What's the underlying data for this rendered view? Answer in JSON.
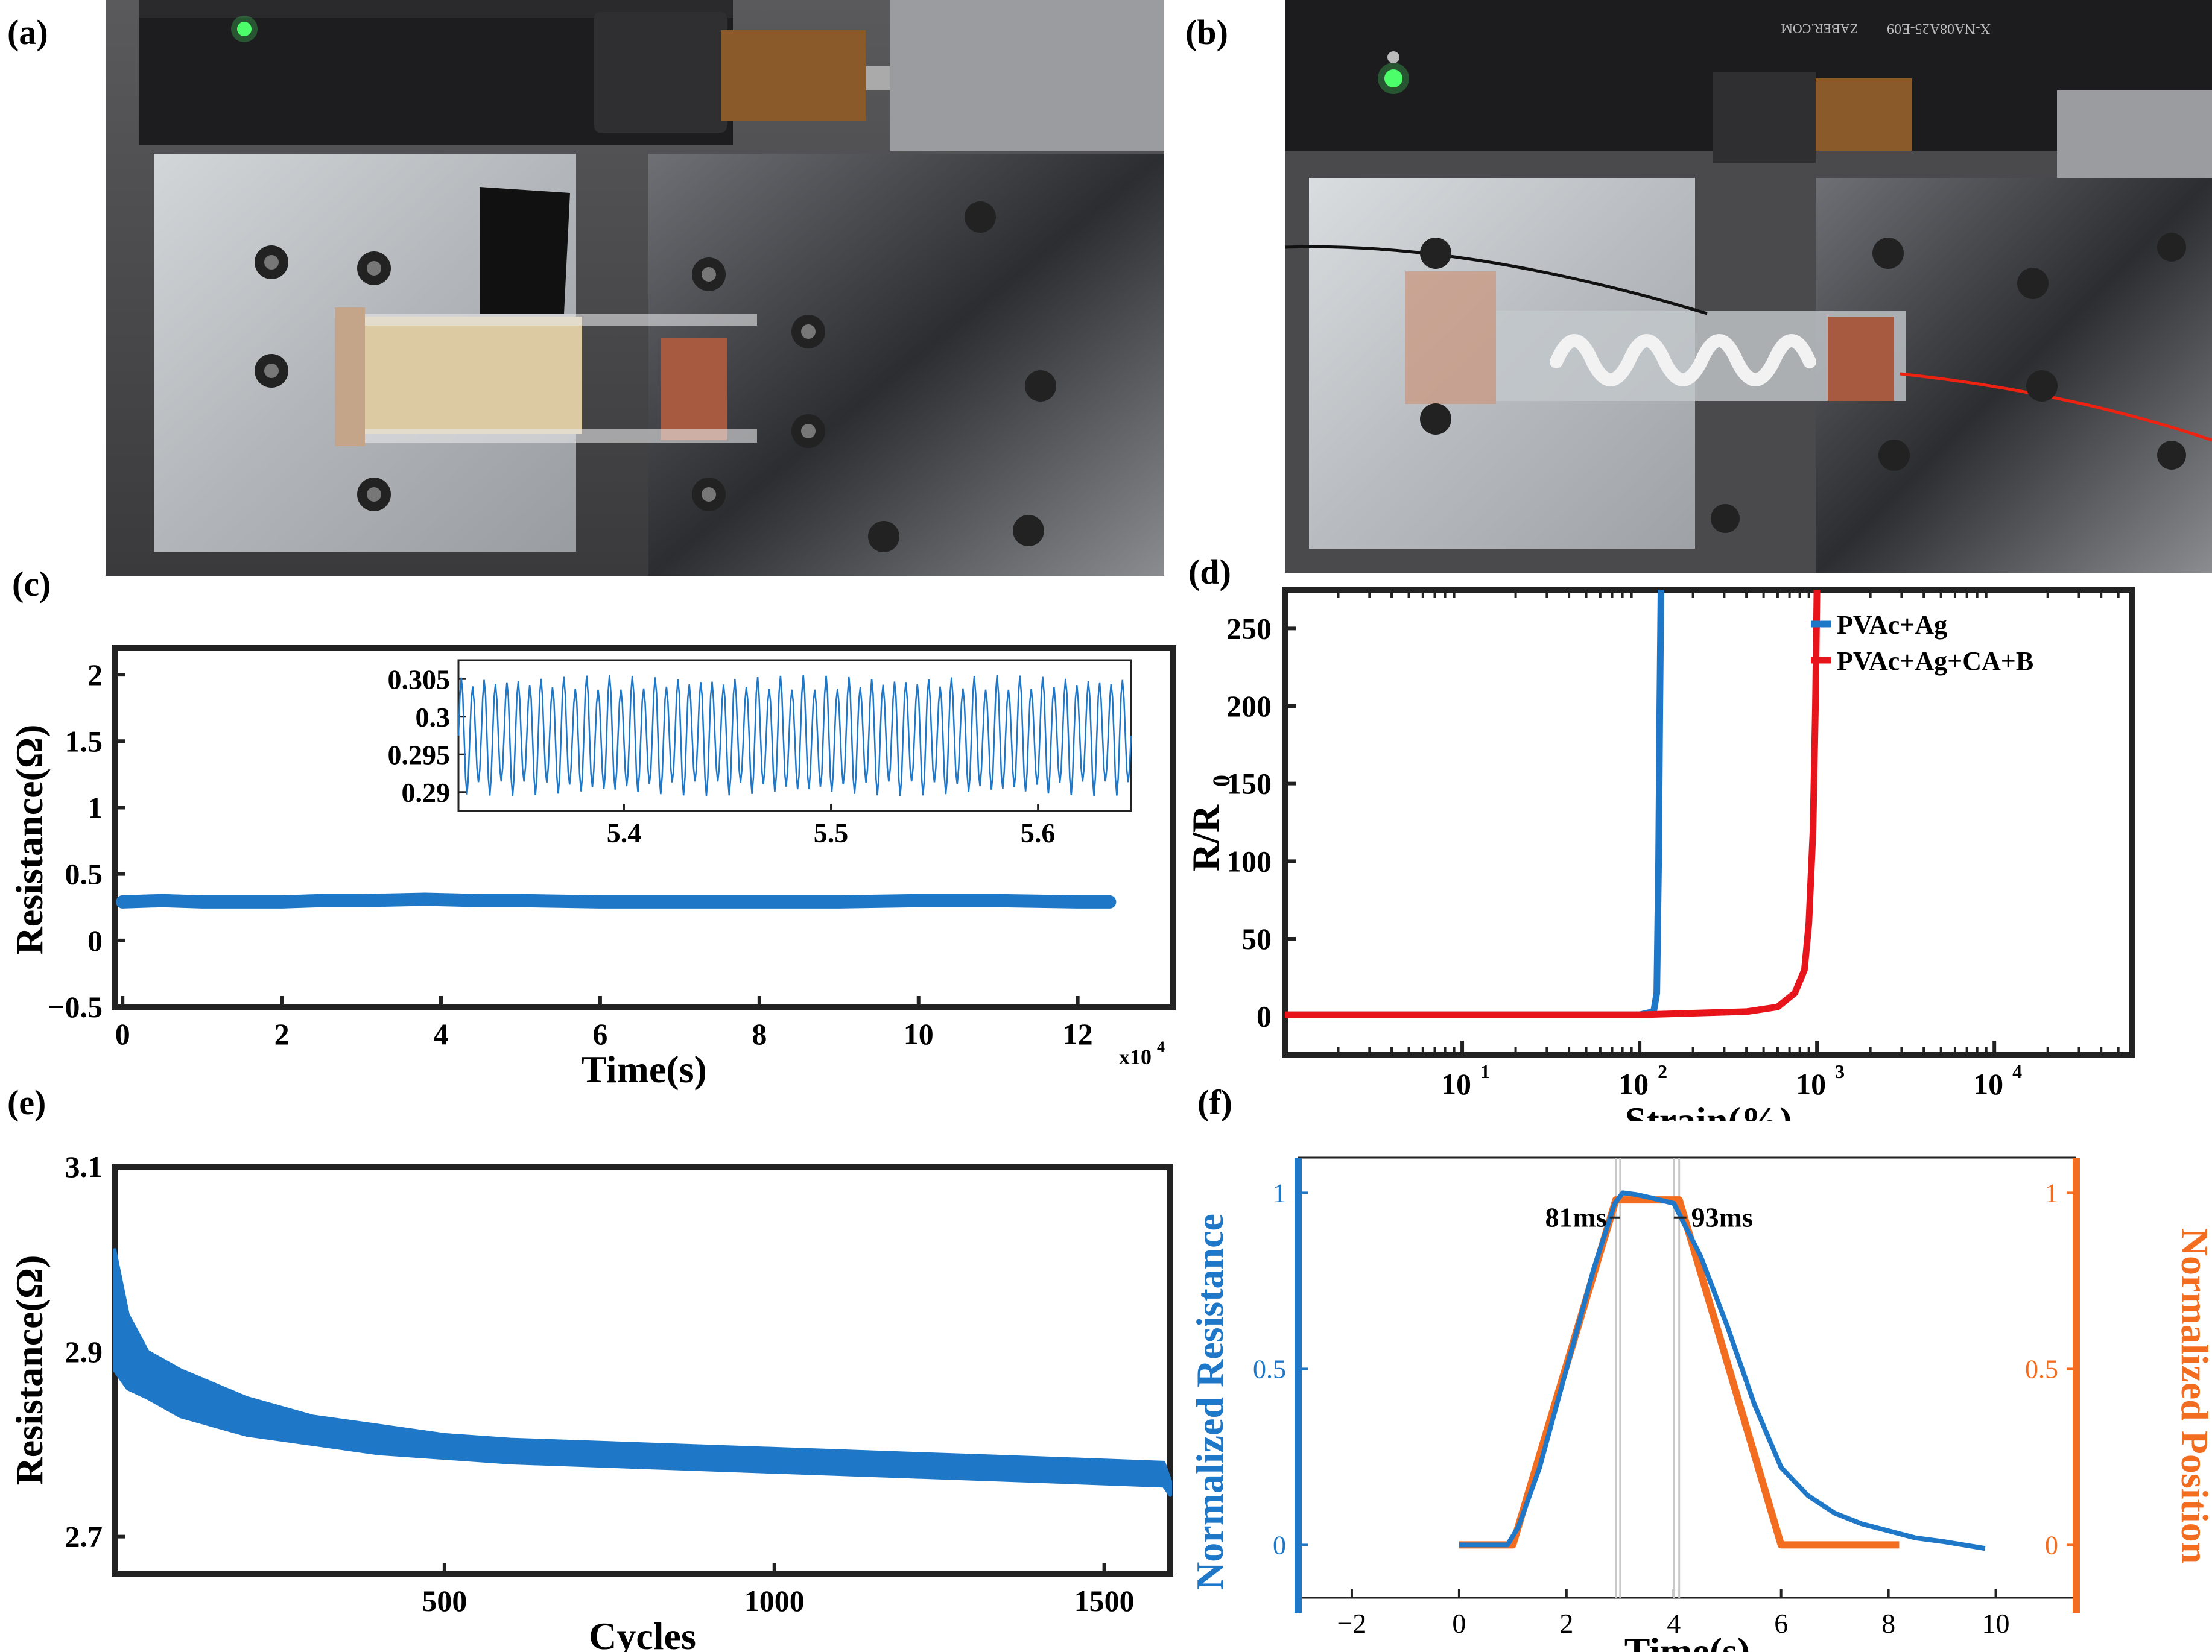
{
  "panels": {
    "a": "(a)",
    "b": "(b)",
    "c": "(c)",
    "d": "(d)",
    "e": "(e)",
    "f": "(f)"
  },
  "colors": {
    "blue": "#1f77c8",
    "red": "#e8141b",
    "orange": "#f36d21",
    "axis_blue": "#1f77c8"
  },
  "photos": {
    "b_label": "X-NA08A25-E09",
    "b_brand": "ZABER.COM"
  },
  "chart_data": [
    {
      "id": "c",
      "type": "line",
      "xlabel": "Time(s)",
      "ylabel": "Resistance(Ω)",
      "x_multiplier": "x10",
      "x_multiplier_exp": "4",
      "xlim": [
        -0.1,
        13.2
      ],
      "ylim": [
        -0.5,
        2.2
      ],
      "xticks": [
        0,
        2,
        4,
        6,
        8,
        10,
        12
      ],
      "yticks": [
        -0.5,
        0,
        0.5,
        1,
        1.5,
        2
      ],
      "ytick_labels": [
        "−0.5",
        "0",
        "0.5",
        "1",
        "1.5",
        "2"
      ],
      "series": [
        {
          "color": "#1f77c8",
          "x": [
            0,
            0.5,
            1,
            2,
            2.5,
            3,
            3.8,
            4.5,
            5,
            6,
            7,
            8,
            9,
            10,
            11,
            12,
            12.4
          ],
          "y": [
            0.29,
            0.3,
            0.29,
            0.29,
            0.3,
            0.3,
            0.31,
            0.3,
            0.3,
            0.29,
            0.29,
            0.29,
            0.29,
            0.3,
            0.3,
            0.29,
            0.29
          ]
        }
      ],
      "inset": {
        "xlim": [
          5.32,
          5.645
        ],
        "ylim": [
          0.2875,
          0.3075
        ],
        "xticks": [
          5.4,
          5.5,
          5.6
        ],
        "yticks": [
          0.29,
          0.295,
          0.3,
          0.305
        ],
        "ytick_labels": [
          "0.29",
          "0.295",
          "0.3",
          "0.305"
        ],
        "cycles": 59,
        "y_min": 0.2895,
        "y_max": 0.3055
      }
    },
    {
      "id": "d",
      "type": "line",
      "xscale": "log",
      "xlabel": "Strain(%)",
      "ylabel": "R/R",
      "ylabel_sub": "0",
      "xlim": [
        1,
        60000
      ],
      "ylim": [
        -25,
        275
      ],
      "xticks": [
        10,
        100,
        1000,
        10000
      ],
      "xtick_base": "10",
      "xtick_exps": [
        "1",
        "2",
        "3",
        "4"
      ],
      "yticks": [
        0,
        50,
        100,
        150,
        200,
        250
      ],
      "legend_position": "top-right",
      "series": [
        {
          "name": "PVAc+Ag",
          "color": "#1f77c8",
          "x": [
            1,
            50,
            100,
            120,
            125,
            128,
            130,
            132
          ],
          "y": [
            1,
            1,
            1,
            3,
            15,
            100,
            200,
            275
          ]
        },
        {
          "name": "PVAc+Ag+CA+B",
          "color": "#e8141b",
          "x": [
            1,
            100,
            200,
            400,
            600,
            750,
            850,
            900,
            950,
            980,
            1000
          ],
          "y": [
            1,
            1,
            2,
            3,
            6,
            15,
            30,
            60,
            120,
            200,
            275
          ]
        }
      ]
    },
    {
      "id": "e",
      "type": "line",
      "xlabel": "Cycles",
      "ylabel": "Resistance(Ω)",
      "xlim": [
        0,
        1600
      ],
      "ylim": [
        2.66,
        3.1
      ],
      "xticks": [
        500,
        1000,
        1500
      ],
      "yticks": [
        2.7,
        2.9,
        3.1
      ],
      "series": [
        {
          "color": "#1f77c8",
          "x": [
            0,
            20,
            50,
            100,
            200,
            300,
            400,
            500,
            600,
            800,
            1000,
            1200,
            1400,
            1590,
            1600
          ],
          "y_upper": [
            3.01,
            2.94,
            2.9,
            2.88,
            2.85,
            2.83,
            2.82,
            2.81,
            2.805,
            2.8,
            2.795,
            2.79,
            2.785,
            2.78,
            2.76
          ],
          "y_lower": [
            2.88,
            2.86,
            2.85,
            2.83,
            2.81,
            2.8,
            2.79,
            2.785,
            2.78,
            2.775,
            2.77,
            2.765,
            2.76,
            2.755,
            2.745
          ]
        }
      ]
    },
    {
      "id": "f",
      "type": "line",
      "xlabel": "Time(s)",
      "ylabel_left": "Normalized Resistance",
      "ylabel_right": "Normalized Position",
      "xlim": [
        -3,
        11.5
      ],
      "ylim": [
        -0.15,
        1.1
      ],
      "xticks": [
        -2,
        0,
        2,
        4,
        6,
        8,
        10
      ],
      "xtick_labels": [
        "−2",
        "0",
        "2",
        "4",
        "6",
        "8",
        "10"
      ],
      "yticks_left": [
        0,
        0.5,
        1
      ],
      "yticks_right": [
        0,
        0.5,
        1
      ],
      "annotations": [
        "81ms",
        "93ms"
      ],
      "vlines": [
        2.92,
        3.0,
        4.0,
        4.1
      ],
      "series": [
        {
          "name": "Normalized Resistance",
          "color": "#1f77c8",
          "x": [
            0,
            0.9,
            1.1,
            1.5,
            2.0,
            2.5,
            2.9,
            3.05,
            3.3,
            3.6,
            4.0,
            4.5,
            5.0,
            5.5,
            6.0,
            6.5,
            7.0,
            7.5,
            8.0,
            8.5,
            9.0,
            9.8
          ],
          "y": [
            0,
            0,
            0.05,
            0.22,
            0.5,
            0.78,
            0.97,
            1.0,
            0.995,
            0.985,
            0.97,
            0.82,
            0.62,
            0.4,
            0.22,
            0.14,
            0.09,
            0.06,
            0.04,
            0.02,
            0.01,
            -0.01
          ]
        },
        {
          "name": "Normalized Position",
          "color": "#f36d21",
          "x": [
            0,
            1,
            2.92,
            4.1,
            6.0,
            8.2
          ],
          "y": [
            0,
            0,
            0.98,
            0.98,
            0,
            0
          ]
        }
      ]
    }
  ]
}
